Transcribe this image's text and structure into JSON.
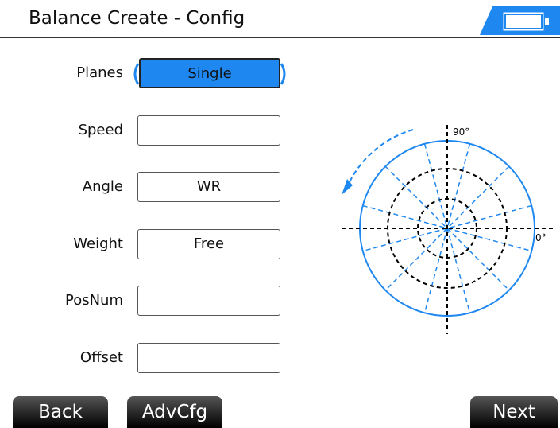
{
  "header": {
    "title": "Balance Create - Config"
  },
  "fields": [
    {
      "label": "Planes",
      "value": "Single"
    },
    {
      "label": "Speed",
      "value": ""
    },
    {
      "label": "Angle",
      "value": "WR"
    },
    {
      "label": "Weight",
      "value": "Free"
    },
    {
      "label": "PosNum",
      "value": ""
    },
    {
      "label": "Offset",
      "value": ""
    }
  ],
  "diagram": {
    "top_label": "90°",
    "right_label": "0°"
  },
  "buttons": [
    "Back",
    "AdvCfg",
    "Next"
  ]
}
